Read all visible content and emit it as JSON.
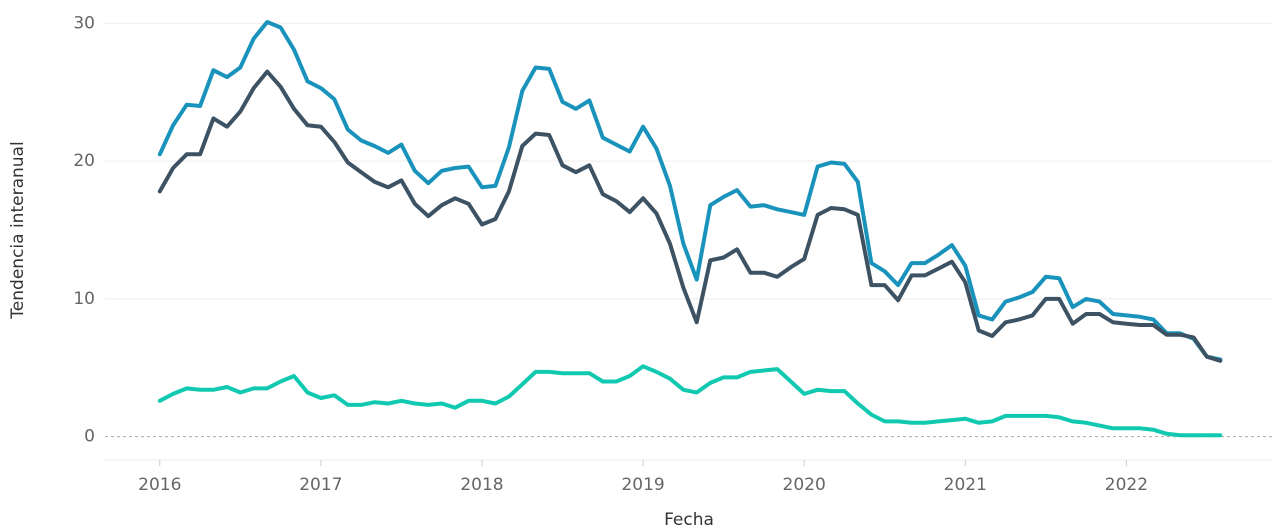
{
  "chart_data": {
    "type": "line",
    "x_label": "Fecha",
    "y_label": "Tendencia interanual",
    "x": [
      2016,
      2016.083,
      2016.167,
      2016.25,
      2016.333,
      2016.417,
      2016.5,
      2016.583,
      2016.667,
      2016.75,
      2016.833,
      2016.917,
      2017,
      2017.083,
      2017.167,
      2017.25,
      2017.333,
      2017.417,
      2017.5,
      2017.583,
      2017.667,
      2017.75,
      2017.833,
      2017.917,
      2018,
      2018.083,
      2018.167,
      2018.25,
      2018.333,
      2018.417,
      2018.5,
      2018.583,
      2018.667,
      2018.75,
      2018.833,
      2018.917,
      2019,
      2019.083,
      2019.167,
      2019.25,
      2019.333,
      2019.417,
      2019.5,
      2019.583,
      2019.667,
      2019.75,
      2019.833,
      2019.917,
      2020,
      2020.083,
      2020.167,
      2020.25,
      2020.333,
      2020.417,
      2020.5,
      2020.583,
      2020.667,
      2020.75,
      2020.833,
      2020.917,
      2021,
      2021.083,
      2021.167,
      2021.25,
      2021.333,
      2021.417,
      2021.5,
      2021.583,
      2021.667,
      2021.75,
      2021.833,
      2021.917,
      2022,
      2022.083,
      2022.167,
      2022.25,
      2022.333,
      2022.417,
      2022.5,
      2022.583
    ],
    "series": [
      {
        "color": "#1a93bc",
        "values": [
          20.5,
          22.6,
          24.1,
          24.0,
          26.6,
          26.1,
          26.8,
          28.9,
          30.1,
          29.7,
          28.1,
          25.8,
          25.3,
          24.5,
          22.3,
          21.5,
          21.1,
          20.6,
          21.2,
          19.3,
          18.4,
          19.3,
          19.5,
          19.6,
          18.1,
          18.2,
          21.0,
          25.1,
          26.8,
          26.7,
          24.3,
          23.8,
          24.4,
          21.7,
          21.2,
          20.7,
          22.5,
          20.9,
          18.2,
          14.0,
          11.4,
          16.8,
          17.4,
          17.9,
          16.7,
          16.8,
          16.5,
          16.3,
          16.1,
          19.6,
          19.9,
          19.8,
          18.5,
          12.6,
          12.0,
          11.0,
          12.6,
          12.6,
          13.2,
          13.9,
          12.4,
          8.8,
          8.5,
          9.8,
          10.1,
          10.5,
          11.6,
          11.5,
          9.4,
          10.0,
          9.8,
          8.9,
          8.8,
          8.7,
          8.5,
          7.5,
          7.5,
          7.1,
          5.8,
          5.6
        ]
      },
      {
        "color": "#3d5263",
        "values": [
          17.8,
          19.5,
          20.5,
          20.5,
          23.1,
          22.5,
          23.6,
          25.3,
          26.5,
          25.4,
          23.8,
          22.6,
          22.5,
          21.4,
          19.9,
          19.2,
          18.5,
          18.1,
          18.6,
          16.9,
          16.0,
          16.8,
          17.3,
          16.9,
          15.4,
          15.8,
          17.8,
          21.1,
          22.0,
          21.9,
          19.7,
          19.2,
          19.7,
          17.6,
          17.1,
          16.3,
          17.3,
          16.2,
          14.0,
          10.8,
          8.3,
          12.8,
          13.0,
          13.6,
          11.9,
          11.9,
          11.6,
          12.3,
          12.9,
          16.1,
          16.6,
          16.5,
          16.1,
          11.0,
          11.0,
          9.9,
          11.7,
          11.7,
          12.2,
          12.7,
          11.2,
          7.7,
          7.3,
          8.3,
          8.5,
          8.8,
          10.0,
          10.0,
          8.2,
          8.9,
          8.9,
          8.3,
          8.2,
          8.1,
          8.1,
          7.4,
          7.4,
          7.2,
          5.8,
          5.5
        ]
      },
      {
        "color": "#11c9b0",
        "values": [
          2.6,
          3.1,
          3.5,
          3.4,
          3.4,
          3.6,
          3.2,
          3.5,
          3.5,
          4.0,
          4.4,
          3.2,
          2.8,
          3.0,
          2.3,
          2.3,
          2.5,
          2.4,
          2.6,
          2.4,
          2.3,
          2.4,
          2.1,
          2.6,
          2.6,
          2.4,
          2.9,
          3.8,
          4.7,
          4.7,
          4.6,
          4.6,
          4.6,
          4.0,
          4.0,
          4.4,
          5.1,
          4.7,
          4.2,
          3.4,
          3.2,
          3.9,
          4.3,
          4.3,
          4.7,
          4.8,
          4.9,
          4.0,
          3.1,
          3.4,
          3.3,
          3.3,
          2.4,
          1.6,
          1.1,
          1.1,
          1.0,
          1.0,
          1.1,
          1.2,
          1.3,
          1.0,
          1.1,
          1.5,
          1.5,
          1.5,
          1.5,
          1.4,
          1.1,
          1.0,
          0.8,
          0.6,
          0.6,
          0.6,
          0.5,
          0.2,
          0.1,
          0.1,
          0.1,
          0.1
        ]
      }
    ],
    "xlim": [
      2015.66,
      2022.91
    ],
    "xticks": [
      2016,
      2017,
      2018,
      2019,
      2020,
      2021,
      2022
    ],
    "ylim": [
      -1.7,
      31.7
    ],
    "yticks": [
      0,
      10,
      20,
      30
    ],
    "grid": true
  }
}
